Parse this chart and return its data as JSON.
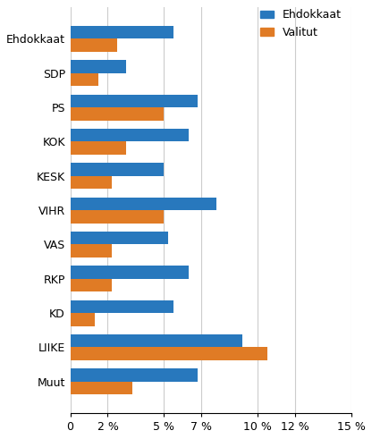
{
  "categories": [
    "Ehdokkaat",
    "SDP",
    "PS",
    "KOK",
    "KESK",
    "VIHR",
    "VAS",
    "RKP",
    "KD",
    "LIIKE",
    "Muut"
  ],
  "ehdokkaat": [
    5.5,
    3.0,
    6.8,
    6.3,
    5.0,
    7.8,
    5.2,
    6.3,
    5.5,
    9.2,
    6.8
  ],
  "valitut": [
    2.5,
    1.5,
    5.0,
    3.0,
    2.2,
    5.0,
    2.2,
    2.2,
    1.3,
    10.5,
    3.3
  ],
  "bar_color_ehdokkaat": "#2878BD",
  "bar_color_valitut": "#E07B25",
  "legend_labels": [
    "Ehdokkaat",
    "Valitut"
  ],
  "xlim": [
    0,
    15
  ],
  "xticks": [
    0,
    2,
    5,
    7,
    10,
    12,
    15
  ],
  "xtick_labels": [
    "0",
    "2 %",
    "5 %",
    "7 %",
    "10 %",
    "12 %",
    "15 %"
  ],
  "background_color": "#ffffff",
  "grid_color": "#cccccc",
  "bar_height": 0.38,
  "figsize": [
    4.16,
    4.91
  ],
  "dpi": 100
}
